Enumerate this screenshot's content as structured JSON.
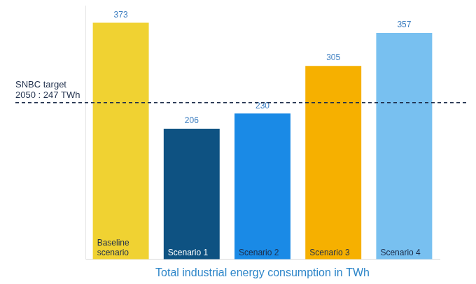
{
  "chart_data": {
    "type": "bar",
    "xlabel": "Total industrial energy consumption in TWh",
    "categories": [
      "Baseline scenario",
      "Scenario 1",
      "Scenario 2",
      "Scenario 3",
      "Scenario 4"
    ],
    "values": [
      373,
      206,
      230,
      305,
      357
    ],
    "colors": [
      "#f0d232",
      "#0e5282",
      "#1a8ae6",
      "#f6b000",
      "#78c0f0"
    ],
    "ylim": [
      0,
      400
    ],
    "tick_labels": false,
    "grid": false,
    "data_labels": true,
    "target_line": {
      "value": 247,
      "label": [
        "SNBC target",
        "2050 : 247 TWh"
      ]
    }
  }
}
